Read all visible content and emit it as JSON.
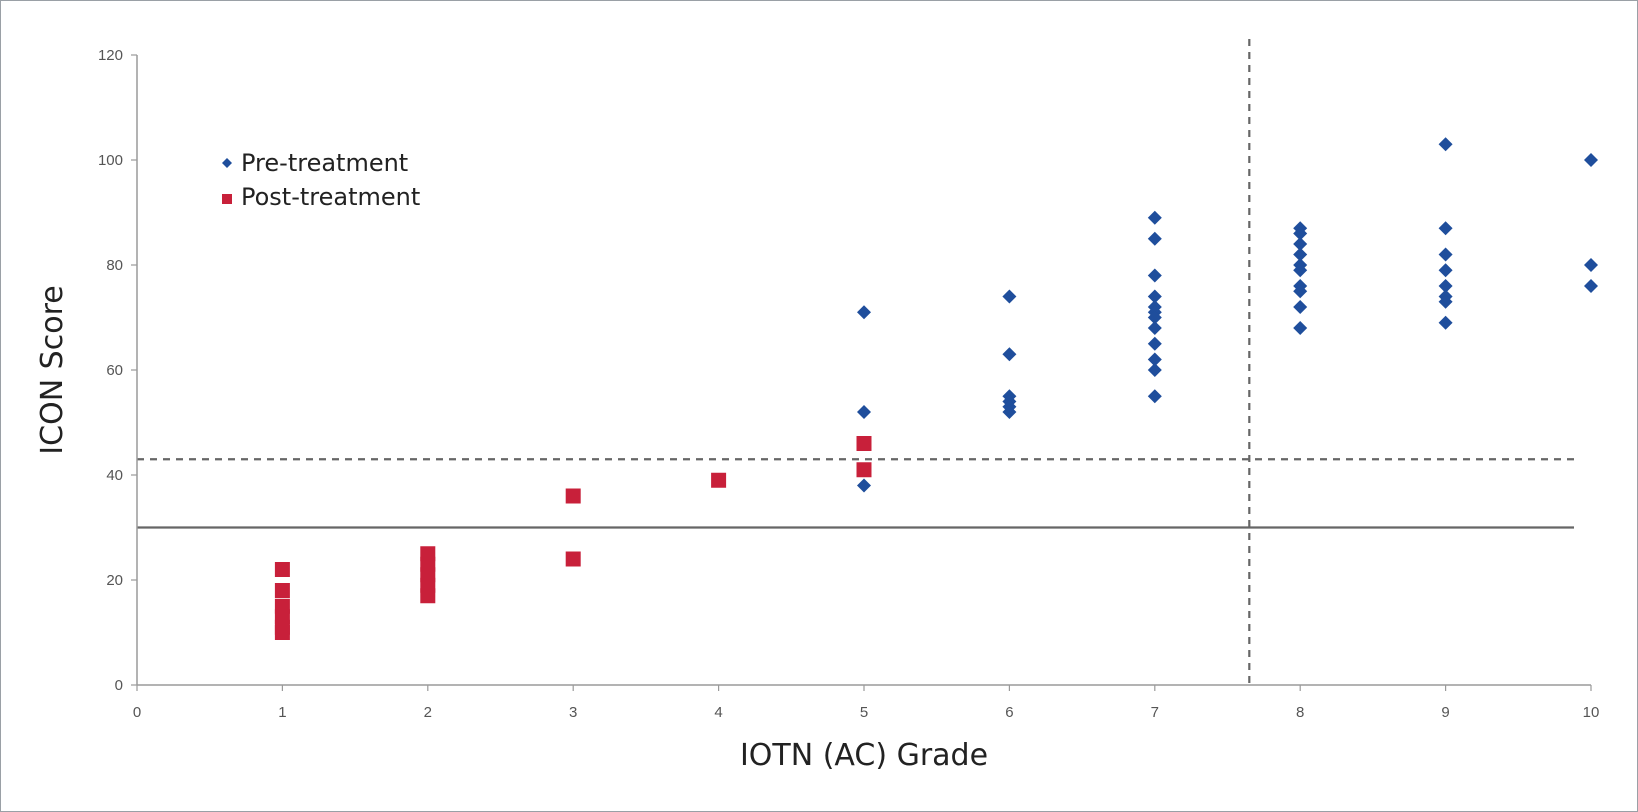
{
  "chart_data": {
    "type": "scatter",
    "xlabel": "IOTN (AC) Grade",
    "ylabel": "ICON Score",
    "xlim": [
      0,
      10
    ],
    "ylim": [
      0,
      120
    ],
    "x_ticks": [
      "0",
      "1",
      "2",
      "3",
      "4",
      "5",
      "6",
      "7",
      "8",
      "9",
      "10"
    ],
    "y_ticks": [
      "0",
      "20",
      "40",
      "60",
      "80",
      "100",
      "120"
    ],
    "grid": false,
    "legend_position": "top-left",
    "series": [
      {
        "name": "Pre-treatment",
        "marker": "diamond",
        "color": "#1f4e9c",
        "points": [
          [
            5,
            71
          ],
          [
            5,
            52
          ],
          [
            5,
            38
          ],
          [
            6,
            74
          ],
          [
            6,
            63
          ],
          [
            6,
            55
          ],
          [
            6,
            54
          ],
          [
            6,
            53
          ],
          [
            6,
            52
          ],
          [
            7,
            89
          ],
          [
            7,
            85
          ],
          [
            7,
            78
          ],
          [
            7,
            74
          ],
          [
            7,
            72
          ],
          [
            7,
            71
          ],
          [
            7,
            70
          ],
          [
            7,
            68
          ],
          [
            7,
            65
          ],
          [
            7,
            62
          ],
          [
            7,
            60
          ],
          [
            7,
            55
          ],
          [
            8,
            87
          ],
          [
            8,
            86
          ],
          [
            8,
            84
          ],
          [
            8,
            82
          ],
          [
            8,
            80
          ],
          [
            8,
            79
          ],
          [
            8,
            76
          ],
          [
            8,
            75
          ],
          [
            8,
            72
          ],
          [
            8,
            68
          ],
          [
            9,
            103
          ],
          [
            9,
            87
          ],
          [
            9,
            82
          ],
          [
            9,
            79
          ],
          [
            9,
            76
          ],
          [
            9,
            74
          ],
          [
            9,
            73
          ],
          [
            9,
            69
          ],
          [
            10,
            100
          ],
          [
            10,
            80
          ],
          [
            10,
            76
          ]
        ]
      },
      {
        "name": "Post-treatment",
        "marker": "square",
        "color": "#c8203a",
        "points": [
          [
            1,
            22
          ],
          [
            1,
            18
          ],
          [
            1,
            15
          ],
          [
            1,
            13
          ],
          [
            1,
            11
          ],
          [
            1,
            10
          ],
          [
            2,
            25
          ],
          [
            2,
            23
          ],
          [
            2,
            21
          ],
          [
            2,
            19
          ],
          [
            2,
            17
          ],
          [
            3,
            36
          ],
          [
            3,
            24
          ],
          [
            4,
            39
          ],
          [
            5,
            46
          ],
          [
            5,
            41
          ]
        ]
      }
    ],
    "reference_lines": [
      {
        "orientation": "horizontal",
        "value": 43,
        "style": "dashed",
        "color": "#666666"
      },
      {
        "orientation": "horizontal",
        "value": 30,
        "style": "solid",
        "color": "#666666"
      },
      {
        "orientation": "vertical",
        "value": 7.65,
        "style": "dashed",
        "color": "#666666"
      }
    ]
  }
}
